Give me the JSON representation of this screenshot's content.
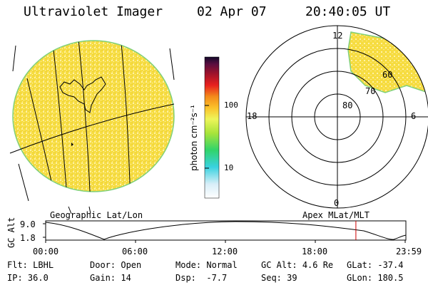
{
  "header": {
    "title": "Ultraviolet Imager",
    "date": "02 Apr 07",
    "time": "20:40:05 UT"
  },
  "colorbar": {
    "unit_label": "photon cm⁻²s⁻¹",
    "tick_labels": [
      "100",
      "10"
    ]
  },
  "polar_plot": {
    "mlt_labels": {
      "top": "12",
      "left": "18",
      "right": "6",
      "bottom": "0"
    },
    "lat_labels": [
      "80",
      "70",
      "60"
    ]
  },
  "map_labels": {
    "left": "Geographic Lat/Lon",
    "right": "Apex MLat/MLT"
  },
  "orbit_plot": {
    "ylabel": "GC Alt",
    "y_ticks": [
      "9.0",
      "1.8"
    ],
    "x_ticks": [
      "00:00",
      "06:00",
      "12:00",
      "18:00",
      "23:59"
    ],
    "current_time_marker_fraction": 0.8612
  },
  "status": {
    "row1": [
      {
        "label": "Flt:",
        "value": "LBHL"
      },
      {
        "label": "Door:",
        "value": "Open"
      },
      {
        "label": "Mode:",
        "value": "Normal"
      },
      {
        "label": "GC Alt:",
        "value": "4.6 Re"
      },
      {
        "label": "GLat:",
        "value": "-37.4"
      }
    ],
    "row2": [
      {
        "label": "IP:",
        "value": "36.0"
      },
      {
        "label": "Gain:",
        "value": "14"
      },
      {
        "label": "Dsp:",
        "value": "-7.7"
      },
      {
        "label": "Seq:",
        "value": "39"
      },
      {
        "label": "GLon:",
        "value": "180.5"
      }
    ]
  },
  "colors": {
    "background": "#ffffff",
    "disk_fill": "#f7e35a",
    "disk_speckle": "#fff3b0",
    "marker_line": "#cc0000"
  }
}
